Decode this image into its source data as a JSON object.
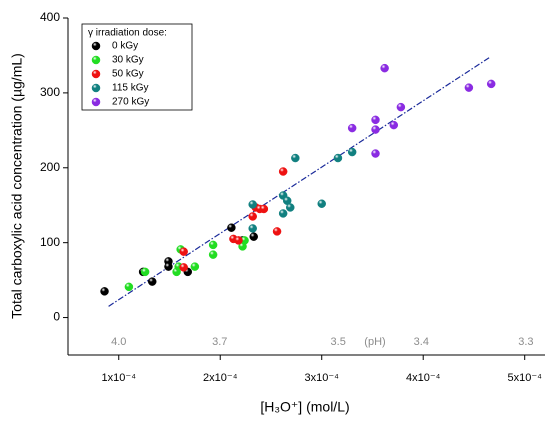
{
  "chart_data": {
    "type": "scatter",
    "xlabel": "[H₃O⁺] (mol/L)",
    "ylabel": "Total carboxylic acid concentration (µg/mL)",
    "legend_title": "γ irradiation dose:",
    "xlim": [
      5e-05,
      0.00052
    ],
    "ylim": [
      -50,
      400
    ],
    "xticks": [
      {
        "value": 0.0001,
        "label": "1x10⁻⁴"
      },
      {
        "value": 0.0002,
        "label": "2x10⁻⁴"
      },
      {
        "value": 0.0003,
        "label": "3x10⁻⁴"
      },
      {
        "value": 0.0004,
        "label": "4x10⁻⁴"
      },
      {
        "value": 0.0005,
        "label": "5x10⁻⁴"
      }
    ],
    "yticks": [
      0,
      100,
      200,
      300,
      400
    ],
    "x2ticks": [
      {
        "value": 4,
        "label": "4.0"
      },
      3.7,
      3.5,
      3.4,
      3.3
    ],
    "x2label": "(pH)",
    "fit_line": {
      "x": [
        9e-05,
        0.000465
      ],
      "y": [
        15,
        347
      ]
    },
    "series": [
      {
        "name": "0 kGy",
        "color": "#000000",
        "x": [
          8.6e-05,
          0.000124,
          0.000133,
          0.000149,
          0.000149,
          0.000168,
          0.000211,
          0.000222,
          0.000233
        ],
        "values": [
          35,
          61,
          48,
          75,
          68,
          61,
          120,
          103,
          108
        ]
      },
      {
        "name": "30 kGy",
        "color": "#22dd22",
        "x": [
          0.00011,
          0.000126,
          0.000157,
          0.000159,
          0.000161,
          0.000175,
          0.000193,
          0.000193,
          0.000222,
          0.000224
        ],
        "values": [
          41,
          61,
          61,
          68,
          91,
          68,
          84,
          97,
          95,
          103
        ]
      },
      {
        "name": "50 kGy",
        "color": "#ee1111",
        "x": [
          0.000164,
          0.000164,
          0.000213,
          0.000218,
          0.000232,
          0.000235,
          0.000239,
          0.000243,
          0.000256,
          0.000262
        ],
        "values": [
          88,
          67,
          105,
          103,
          135,
          147,
          145,
          145,
          115,
          195
        ]
      },
      {
        "name": "115 kGy",
        "color": "#118080",
        "x": [
          0.000232,
          0.000232,
          0.000262,
          0.000262,
          0.000266,
          0.000269,
          0.000274,
          0.0003,
          0.000316,
          0.00033
        ],
        "values": [
          119,
          151,
          139,
          163,
          156,
          147,
          213,
          152,
          213,
          221
        ]
      },
      {
        "name": "270 kGy",
        "color": "#8a2be2",
        "x": [
          0.00033,
          0.000353,
          0.000353,
          0.000353,
          0.000362,
          0.000371,
          0.000378,
          0.000445,
          0.000467
        ],
        "values": [
          253,
          251,
          264,
          219,
          333,
          257,
          281,
          307,
          312
        ]
      }
    ]
  }
}
